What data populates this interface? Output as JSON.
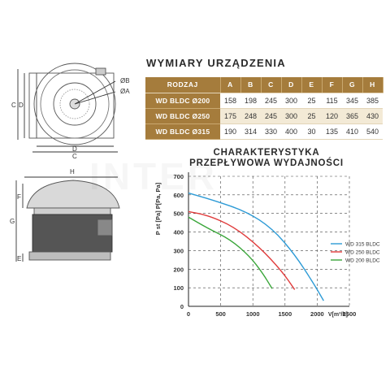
{
  "header": {
    "title": "WYMIARY URZĄDZENIA"
  },
  "dimensions_table": {
    "columns": [
      "RODZAJ",
      "A",
      "B",
      "C",
      "D",
      "E",
      "F",
      "G",
      "H"
    ],
    "rows": [
      {
        "name": "WD BLDC Ø200",
        "values": [
          "158",
          "198",
          "245",
          "300",
          "25",
          "115",
          "345",
          "385"
        ]
      },
      {
        "name": "WD BLDC Ø250",
        "values": [
          "175",
          "248",
          "245",
          "300",
          "25",
          "120",
          "365",
          "430"
        ]
      },
      {
        "name": "WD BLDC Ø315",
        "values": [
          "190",
          "314",
          "330",
          "400",
          "30",
          "135",
          "410",
          "540"
        ]
      }
    ]
  },
  "drawing_labels": {
    "top_view": [
      "ØB",
      "ØA",
      "C",
      "D",
      "C",
      "D"
    ],
    "side_view": [
      "H",
      "F",
      "G",
      "E"
    ]
  },
  "watermark": "INTER",
  "chart_data": {
    "type": "line",
    "title": "CHARAKTERYSTYKA\nPRZEPŁYWOWA WYDAJNOŚCI",
    "ylabel": "P st [Pa] P[Pa, Pa]",
    "xlabel": "V[m³/h]",
    "xlim": [
      0,
      2500
    ],
    "ylim": [
      0,
      700
    ],
    "xticks": [
      "0",
      "500",
      "1000",
      "1500",
      "2000",
      "2500"
    ],
    "yticks": [
      "0",
      "100",
      "200",
      "300",
      "400",
      "500",
      "600",
      "700"
    ],
    "grid": true,
    "legend_position": "right",
    "series": [
      {
        "name": "WD 315 BLDC",
        "color": "#2e9bd6",
        "x": [
          0,
          400,
          900,
          1300,
          1650,
          1950,
          2100
        ],
        "y": [
          610,
          570,
          510,
          420,
          280,
          120,
          30
        ]
      },
      {
        "name": "WD 250 BLDC",
        "color": "#e03c3c",
        "x": [
          0,
          300,
          700,
          1100,
          1450,
          1650
        ],
        "y": [
          510,
          490,
          430,
          320,
          190,
          90
        ]
      },
      {
        "name": "WD 200 BLDC",
        "color": "#3aa63a",
        "x": [
          0,
          300,
          650,
          950,
          1150,
          1300
        ],
        "y": [
          480,
          420,
          360,
          270,
          180,
          95
        ]
      }
    ]
  }
}
